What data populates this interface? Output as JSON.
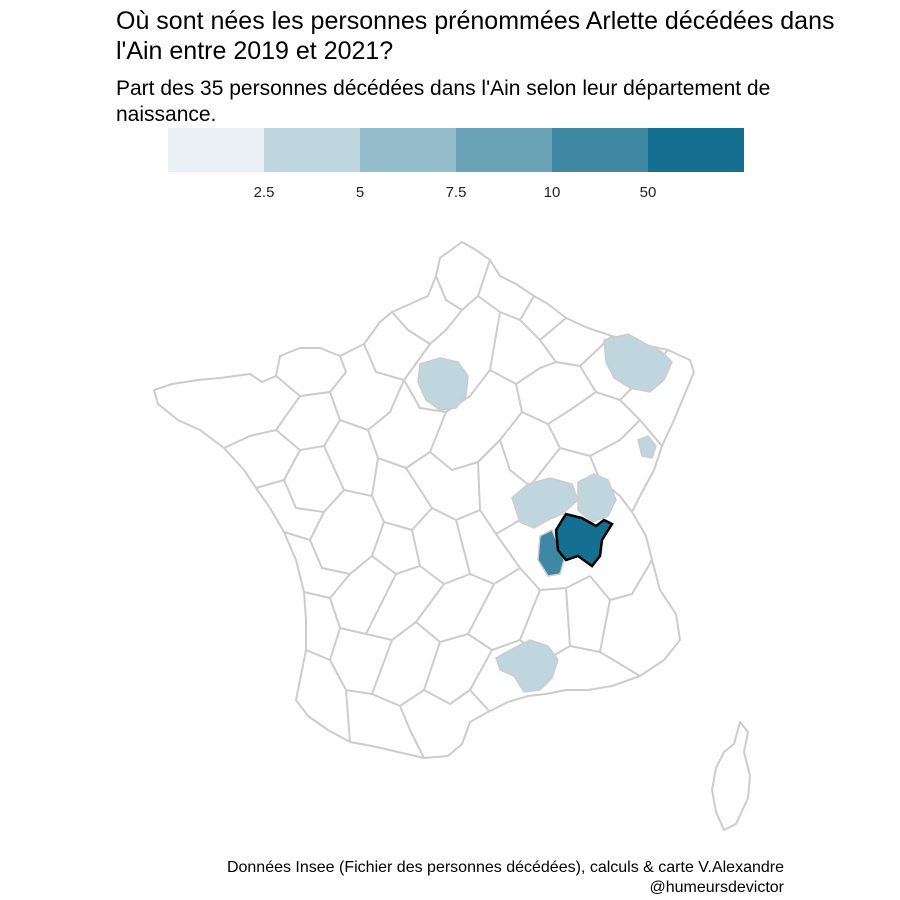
{
  "title": "Où sont nées les personnes prénommées Arlette décédées dans l'Ain entre 2019 et 2021?",
  "subtitle": "Part des 35 personnes décédées dans l'Ain selon leur département de naissance.",
  "legend": {
    "colors": [
      "#e8f0f3",
      "#bfd6df",
      "#95bccb",
      "#6aa3b8",
      "#3f88a4",
      "#156f91"
    ],
    "breaks": [
      "2.5",
      "5",
      "7.5",
      "10",
      "50"
    ]
  },
  "caption": "Données Insee (Fichier des personnes décédées), calculs & carte V.Alexandre @humeursdevictor",
  "map": {
    "border_color": "#cccccc",
    "highlight_department": "Ain",
    "regions": [
      {
        "id": "paris-area",
        "color": "#bfd6df"
      },
      {
        "id": "lorraine",
        "color": "#bfd6df"
      },
      {
        "id": "territoire-belfort",
        "color": "#bfd6df"
      },
      {
        "id": "saone-et-loire",
        "color": "#bfd6df"
      },
      {
        "id": "jura",
        "color": "#bfd6df"
      },
      {
        "id": "gard-herault",
        "color": "#bfd6df"
      },
      {
        "id": "rhone",
        "color": "#3f88a4"
      },
      {
        "id": "ain",
        "color": "#156f91"
      }
    ]
  }
}
